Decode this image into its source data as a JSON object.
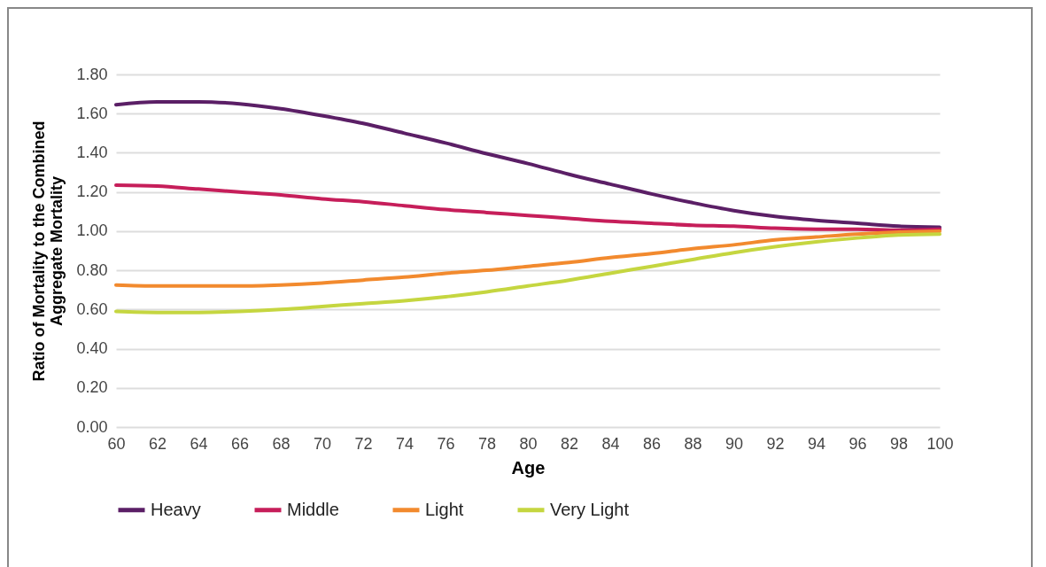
{
  "chart_data": {
    "type": "line",
    "xlabel": "Age",
    "ylabel": "Ratio of Mortality to the Combined\nAggregate Mortality",
    "x": [
      60,
      62,
      64,
      66,
      68,
      70,
      72,
      74,
      76,
      78,
      80,
      82,
      84,
      86,
      88,
      90,
      92,
      94,
      96,
      98,
      100
    ],
    "series": [
      {
        "name": "Heavy",
        "color": "#5b1f66",
        "values": [
          1.645,
          1.66,
          1.66,
          1.65,
          1.625,
          1.59,
          1.55,
          1.5,
          1.45,
          1.395,
          1.345,
          1.29,
          1.24,
          1.19,
          1.145,
          1.105,
          1.075,
          1.055,
          1.04,
          1.025,
          1.02
        ]
      },
      {
        "name": "Middle",
        "color": "#c61e5a",
        "values": [
          1.235,
          1.23,
          1.215,
          1.2,
          1.185,
          1.165,
          1.15,
          1.13,
          1.11,
          1.095,
          1.08,
          1.065,
          1.05,
          1.04,
          1.03,
          1.025,
          1.015,
          1.01,
          1.01,
          1.005,
          1.01
        ]
      },
      {
        "name": "Light",
        "color": "#f28a2e",
        "values": [
          0.725,
          0.72,
          0.72,
          0.72,
          0.725,
          0.735,
          0.75,
          0.765,
          0.785,
          0.8,
          0.82,
          0.84,
          0.865,
          0.885,
          0.91,
          0.93,
          0.955,
          0.97,
          0.985,
          0.995,
          1.0
        ]
      },
      {
        "name": "Very Light",
        "color": "#c5d640",
        "values": [
          0.59,
          0.585,
          0.585,
          0.59,
          0.6,
          0.615,
          0.63,
          0.645,
          0.665,
          0.69,
          0.72,
          0.75,
          0.785,
          0.82,
          0.855,
          0.89,
          0.92,
          0.945,
          0.965,
          0.98,
          0.985
        ]
      }
    ],
    "xlim": [
      60,
      100
    ],
    "xticks": [
      60,
      62,
      64,
      66,
      68,
      70,
      72,
      74,
      76,
      78,
      80,
      82,
      84,
      86,
      88,
      90,
      92,
      94,
      96,
      98,
      100
    ],
    "ylim": [
      0,
      1.8
    ],
    "yticks": [
      {
        "value": 0,
        "label": "0.00"
      },
      {
        "value": 0.2,
        "label": "0.20"
      },
      {
        "value": 0.4,
        "label": "0.40"
      },
      {
        "value": 0.6,
        "label": "0.60"
      },
      {
        "value": 0.8,
        "label": "0.80"
      },
      {
        "value": 1,
        "label": "1.00"
      },
      {
        "value": 1.2,
        "label": "1.20"
      },
      {
        "value": 1.4,
        "label": "1.40"
      },
      {
        "value": 1.6,
        "label": "1.60"
      },
      {
        "value": 1.8,
        "label": "1.80"
      }
    ],
    "grid": "y",
    "legend": "bottom",
    "marker": "none",
    "line_style": "solid"
  }
}
